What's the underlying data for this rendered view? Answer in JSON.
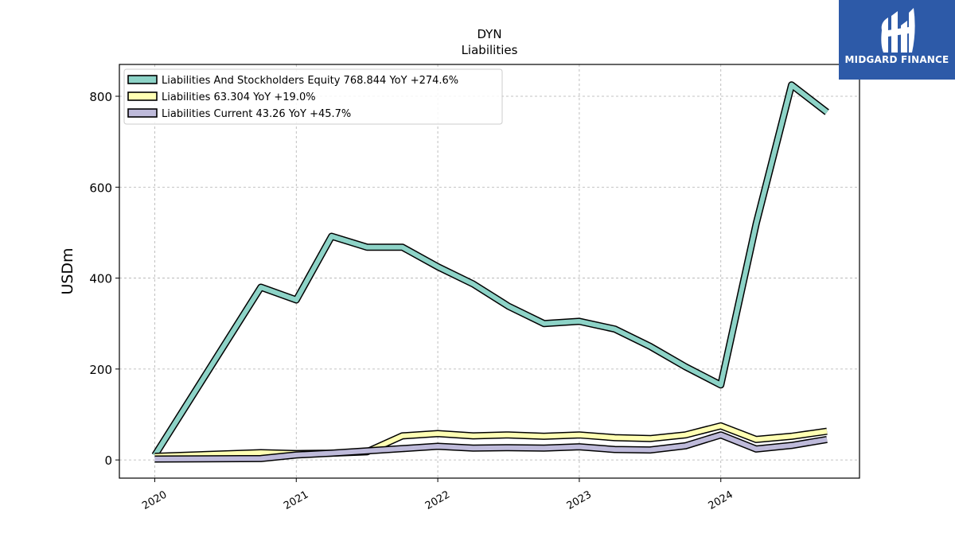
{
  "chart_data": {
    "type": "line",
    "title": "DYN",
    "subtitle": "Liabilities",
    "xlabel": "",
    "ylabel": "USDm",
    "ylim": [
      -40,
      870
    ],
    "yticks": [
      0,
      200,
      400,
      600,
      800
    ],
    "xticks": [
      "2020",
      "2021",
      "2022",
      "2023",
      "2024"
    ],
    "xlim": [
      2019.75,
      2024.98
    ],
    "grid": true,
    "legend_position": "top-left",
    "series": [
      {
        "name": "Liabilities And Stockholders Equity",
        "legend_label": "Liabilities And Stockholders Equity  768.844 YoY +274.6%",
        "color": "#8dd3c7",
        "x": [
          2020.0,
          2020.75,
          2021.0,
          2021.25,
          2021.5,
          2021.75,
          2022.0,
          2022.25,
          2022.5,
          2022.75,
          2023.0,
          2023.25,
          2023.5,
          2023.75,
          2024.0,
          2024.25,
          2024.5,
          2024.75
        ],
        "values": [
          10,
          380,
          352,
          492,
          468,
          468,
          425,
          387,
          338,
          300,
          305,
          288,
          250,
          205,
          165,
          520,
          825,
          765
        ]
      },
      {
        "name": "Liabilities",
        "legend_label": "Liabilities  63.304 YoY +19.0%",
        "color": "#ffffb3",
        "x": [
          2020.0,
          2020.75,
          2021.0,
          2021.25,
          2021.5,
          2021.75,
          2022.0,
          2022.25,
          2022.5,
          2022.75,
          2023.0,
          2023.25,
          2023.5,
          2023.75,
          2024.0,
          2024.25,
          2024.5,
          2024.75
        ],
        "values": [
          8,
          16,
          14,
          15,
          18,
          53,
          58,
          53,
          55,
          52,
          55,
          49,
          47,
          55,
          75,
          45,
          52,
          63
        ]
      },
      {
        "name": "Liabilities Current",
        "legend_label": "Liabilities Current  43.26 YoY +45.7%",
        "color": "#bebada",
        "x": [
          2020.0,
          2020.75,
          2021.0,
          2021.25,
          2021.5,
          2021.75,
          2022.0,
          2022.25,
          2022.5,
          2022.75,
          2023.0,
          2023.25,
          2023.5,
          2023.75,
          2024.0,
          2024.25,
          2024.5,
          2024.75
        ],
        "values": [
          2,
          3,
          11,
          15,
          20,
          25,
          30,
          26,
          27,
          26,
          29,
          23,
          22,
          31,
          55,
          24,
          32,
          45
        ]
      }
    ]
  },
  "logo": {
    "text": "MIDGARD FINANCE",
    "bg_color": "#2d5aa8"
  }
}
